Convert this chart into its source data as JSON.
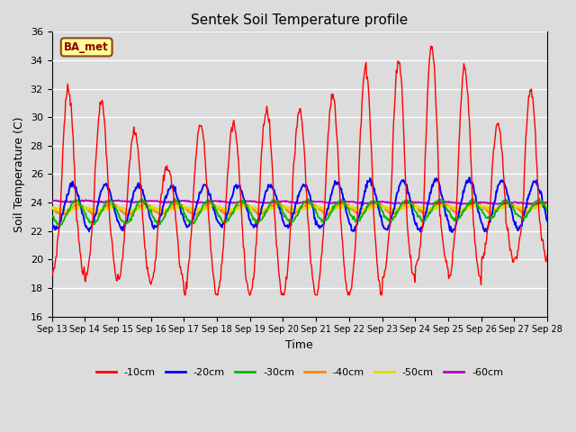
{
  "title": "Sentek Soil Temperature profile",
  "xlabel": "Time",
  "ylabel": "Soil Temperature (C)",
  "annotation": "BA_met",
  "ylim": [
    16,
    36
  ],
  "yticks": [
    16,
    18,
    20,
    22,
    24,
    26,
    28,
    30,
    32,
    34,
    36
  ],
  "x_labels": [
    "Sep 13",
    "Sep 14",
    "Sep 15",
    "Sep 16",
    "Sep 17",
    "Sep 18",
    "Sep 19",
    "Sep 20",
    "Sep 21",
    "Sep 22",
    "Sep 23",
    "Sep 24",
    "Sep 25",
    "Sep 26",
    "Sep 27",
    "Sep 28"
  ],
  "bg_color": "#dcdcdc",
  "legend_labels": [
    "-10cm",
    "-20cm",
    "-30cm",
    "-40cm",
    "-50cm",
    "-60cm"
  ],
  "legend_colors": [
    "#ff0000",
    "#0000ff",
    "#00bb00",
    "#ff8800",
    "#dddd00",
    "#bb00bb"
  ],
  "figsize": [
    6.4,
    4.8
  ],
  "dpi": 100,
  "n_days": 15,
  "pts_per_day": 48
}
